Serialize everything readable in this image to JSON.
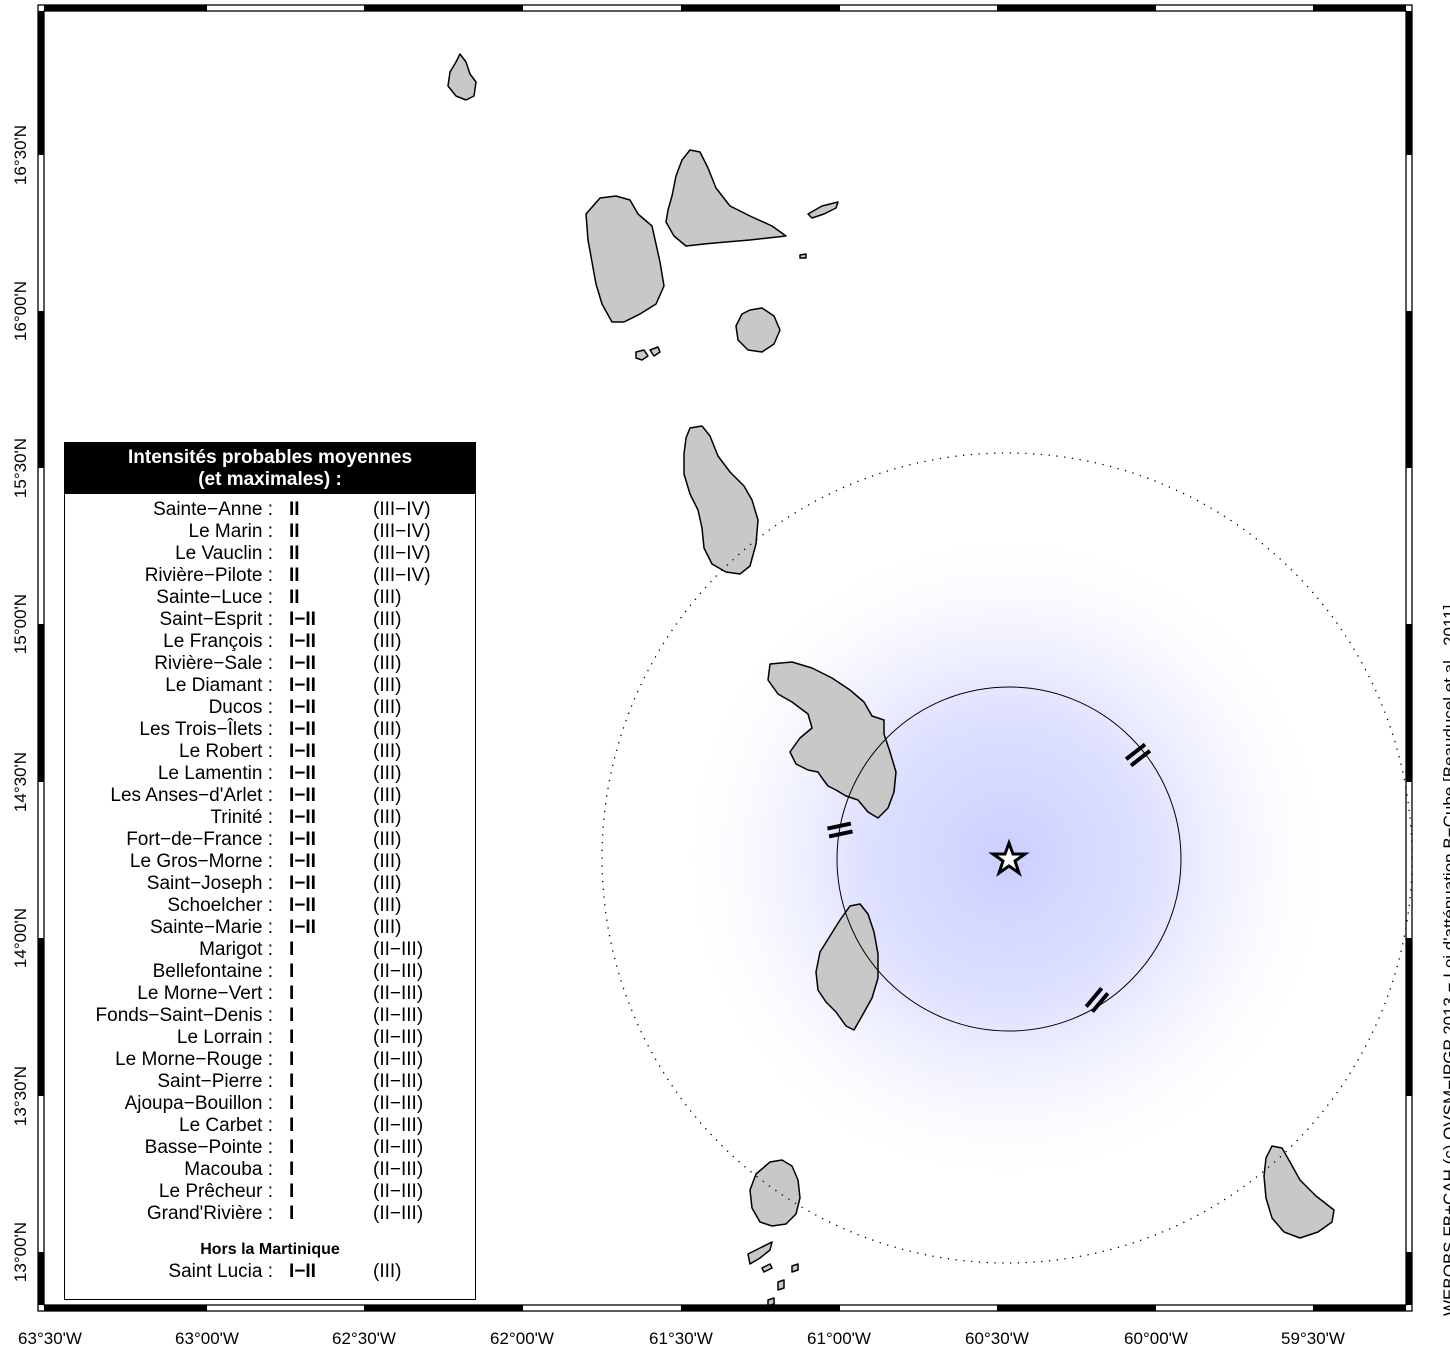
{
  "legend": {
    "title_line1": "Intensités probables moyennes",
    "title_line2": "(et maximales) :",
    "rows": [
      {
        "name": "Sainte−Anne :",
        "value": "II",
        "max": "(III−IV)"
      },
      {
        "name": "Le Marin :",
        "value": "II",
        "max": "(III−IV)"
      },
      {
        "name": "Le Vauclin :",
        "value": "II",
        "max": "(III−IV)"
      },
      {
        "name": "Rivière−Pilote :",
        "value": "II",
        "max": "(III−IV)"
      },
      {
        "name": "Sainte−Luce :",
        "value": "II",
        "max": "(III)"
      },
      {
        "name": "Saint−Esprit :",
        "value": "I−II",
        "max": "(III)"
      },
      {
        "name": "Le François :",
        "value": "I−II",
        "max": "(III)"
      },
      {
        "name": "Rivière−Sale :",
        "value": "I−II",
        "max": "(III)"
      },
      {
        "name": "Le Diamant :",
        "value": "I−II",
        "max": "(III)"
      },
      {
        "name": "Ducos :",
        "value": "I−II",
        "max": "(III)"
      },
      {
        "name": "Les Trois−Îlets :",
        "value": "I−II",
        "max": "(III)"
      },
      {
        "name": "Le Robert :",
        "value": "I−II",
        "max": "(III)"
      },
      {
        "name": "Le Lamentin :",
        "value": "I−II",
        "max": "(III)"
      },
      {
        "name": "Les Anses−d'Arlet :",
        "value": "I−II",
        "max": "(III)"
      },
      {
        "name": "Trinité :",
        "value": "I−II",
        "max": "(III)"
      },
      {
        "name": "Fort−de−France :",
        "value": "I−II",
        "max": "(III)"
      },
      {
        "name": "Le Gros−Morne :",
        "value": "I−II",
        "max": "(III)"
      },
      {
        "name": "Saint−Joseph :",
        "value": "I−II",
        "max": "(III)"
      },
      {
        "name": "Schoelcher :",
        "value": "I−II",
        "max": "(III)"
      },
      {
        "name": "Sainte−Marie :",
        "value": "I−II",
        "max": "(III)"
      },
      {
        "name": "Marigot :",
        "value": "I",
        "max": "(II−III)"
      },
      {
        "name": "Bellefontaine :",
        "value": "I",
        "max": "(II−III)"
      },
      {
        "name": "Le Morne−Vert :",
        "value": "I",
        "max": "(II−III)"
      },
      {
        "name": "Fonds−Saint−Denis :",
        "value": "I",
        "max": "(II−III)"
      },
      {
        "name": "Le Lorrain :",
        "value": "I",
        "max": "(II−III)"
      },
      {
        "name": "Le Morne−Rouge :",
        "value": "I",
        "max": "(II−III)"
      },
      {
        "name": "Saint−Pierre :",
        "value": "I",
        "max": "(II−III)"
      },
      {
        "name": "Ajoupa−Bouillon :",
        "value": "I",
        "max": "(II−III)"
      },
      {
        "name": "Le Carbet :",
        "value": "I",
        "max": "(II−III)"
      },
      {
        "name": "Basse−Pointe :",
        "value": "I",
        "max": "(II−III)"
      },
      {
        "name": "Macouba :",
        "value": "I",
        "max": "(II−III)"
      },
      {
        "name": "Le Prêcheur :",
        "value": "I",
        "max": "(II−III)"
      },
      {
        "name": "Grand'Rivière :",
        "value": "I",
        "max": "(II−III)"
      }
    ],
    "outside_heading": "Hors la Martinique",
    "outside_rows": [
      {
        "name": "Saint Lucia :",
        "value": "I−II",
        "max": "(III)"
      }
    ]
  },
  "axes": {
    "lon_labels": [
      "63°30'W",
      "63°00'W",
      "62°30'W",
      "62°00'W",
      "61°30'W",
      "61°00'W",
      "60°30'W",
      "60°00'W",
      "59°30'W"
    ],
    "lat_labels": [
      "16°30'N",
      "16°00'N",
      "15°30'N",
      "15°00'N",
      "14°30'N",
      "14°00'N",
      "13°30'N",
      "13°00'N"
    ]
  },
  "map_labels": {
    "intensity_mark": "II"
  },
  "credit": "WEBOBS FB+CAH (c) OVSM−IPGP 2013 − Loi d'atténuation B−Cube [Beauducel et al., 2011]",
  "colors": {
    "land": "#c8c8c8",
    "glow": "#c8ccff",
    "frame": "#000000"
  }
}
